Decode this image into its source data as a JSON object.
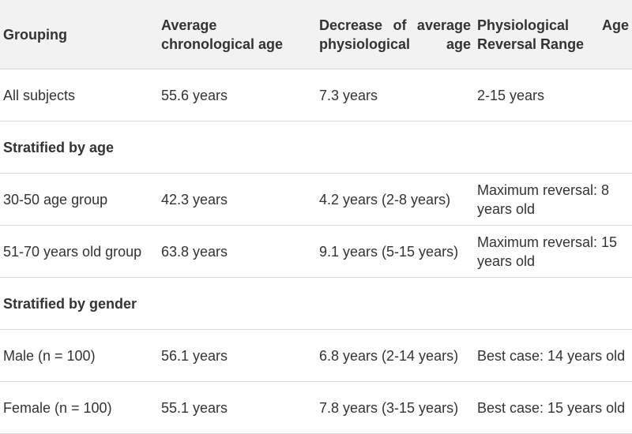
{
  "headers": [
    "Grouping",
    "Average chronological age",
    "Decrease of average physiological age",
    "Physiological Age Reversal Range"
  ],
  "header_cell_4": {
    "line1_word1": "Physiological",
    "line1_word2": "Age",
    "line2": "Reversal Range"
  },
  "rows": [
    {
      "type": "data",
      "cells": [
        "All subjects",
        "55.6 years",
        "7.3 years",
        "2-15 years"
      ]
    },
    {
      "type": "group",
      "label": "Stratified by age"
    },
    {
      "type": "data",
      "cells": [
        "30-50 age group",
        "42.3 years",
        "4.2 years (2-8 years)",
        "Maximum reversal: 8 years old"
      ]
    },
    {
      "type": "data",
      "cells": [
        "51-70 years old group",
        "63.8 years",
        "9.1 years (5-15 years)",
        "Maximum reversal: 15 years old"
      ]
    },
    {
      "type": "group",
      "label": "Stratified by gender"
    },
    {
      "type": "data",
      "cells": [
        "Male (n = 100)",
        "56.1 years",
        "6.8 years (2-14 years)",
        "Best case: 14 years old"
      ]
    },
    {
      "type": "data",
      "cells": [
        "Female (n = 100)",
        "55.1 years",
        "7.8 years (3-15 years)",
        "Best case: 15 years old"
      ]
    }
  ]
}
